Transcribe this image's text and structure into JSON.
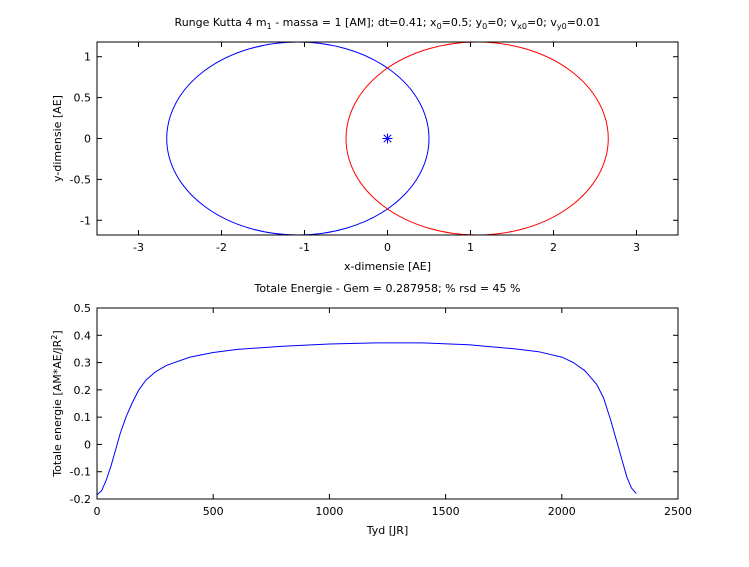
{
  "chart_data": [
    {
      "type": "line",
      "title": {
        "parts": [
          {
            "t": "Runge Kutta 4 m"
          },
          {
            "t": "1",
            "sub": true
          },
          {
            "t": " - massa = 1 [AM]; dt=0.41; x"
          },
          {
            "t": "0",
            "sub": true
          },
          {
            "t": "=0.5; y"
          },
          {
            "t": "0",
            "sub": true
          },
          {
            "t": "=0; v"
          },
          {
            "t": "x0",
            "sub": true
          },
          {
            "t": "=0; v"
          },
          {
            "t": "y0",
            "sub": true
          },
          {
            "t": "=0.01"
          }
        ]
      },
      "xlabel": "x-dimensie [AE]",
      "ylabel": "y-dimensie [AE]",
      "xlim": [
        -3.5,
        3.5
      ],
      "ylim": [
        -1.18,
        1.18
      ],
      "xticks": [
        -3,
        -2,
        -1,
        0,
        1,
        2,
        3
      ],
      "xtick_labels": [
        "-3",
        "-2",
        "-1",
        "0",
        "1",
        "2",
        "3"
      ],
      "yticks": [
        1,
        0.5,
        0,
        -0.5,
        -1
      ],
      "ytick_labels": [
        "1",
        "0.5",
        "0",
        "-0.5",
        "-1"
      ],
      "grid": false,
      "series": [
        {
          "color": "#0000ff",
          "kind": "ellipse",
          "center": [
            -1.08,
            0
          ],
          "semi_axes": [
            1.58,
            1.18
          ]
        },
        {
          "color": "#ff0000",
          "kind": "ellipse",
          "center": [
            1.08,
            0
          ],
          "semi_axes": [
            1.58,
            1.18
          ]
        },
        {
          "color": "#0000ff",
          "kind": "marker",
          "marker": "*",
          "x": [
            0
          ],
          "y": [
            0
          ]
        }
      ]
    },
    {
      "type": "line",
      "title": {
        "parts": [
          {
            "t": "Totale Energie - Gem = 0.287958; % rsd = 45 %"
          }
        ]
      },
      "xlabel": "Tyd [JR]",
      "ylabel": {
        "parts": [
          {
            "t": "Totale energie [AM*AE/JR"
          },
          {
            "t": "2",
            "sup": true
          },
          {
            "t": "]"
          }
        ]
      },
      "xlim": [
        0,
        2500
      ],
      "ylim": [
        -0.2,
        0.5
      ],
      "xticks": [
        0,
        500,
        1000,
        1500,
        2000,
        2500
      ],
      "xtick_labels": [
        "0",
        "500",
        "1000",
        "1500",
        "2000",
        "2500"
      ],
      "yticks": [
        0.5,
        0.4,
        0.3,
        0.2,
        0.1,
        0,
        -0.1,
        -0.2
      ],
      "ytick_labels": [
        "0.5",
        "0.4",
        "0.3",
        "0.2",
        "0.1",
        "0",
        "-0.1",
        "-0.2"
      ],
      "grid": false,
      "series": [
        {
          "color": "#0000ff",
          "x": [
            0,
            20,
            40,
            60,
            80,
            100,
            125,
            150,
            180,
            210,
            250,
            300,
            400,
            500,
            600,
            800,
            1000,
            1200,
            1400,
            1600,
            1800,
            1900,
            2000,
            2050,
            2100,
            2150,
            2180,
            2210,
            2240,
            2260,
            2280,
            2300,
            2320
          ],
          "y": [
            -0.185,
            -0.17,
            -0.13,
            -0.08,
            -0.02,
            0.04,
            0.1,
            0.15,
            0.2,
            0.235,
            0.265,
            0.29,
            0.32,
            0.337,
            0.348,
            0.36,
            0.368,
            0.372,
            0.372,
            0.365,
            0.35,
            0.34,
            0.32,
            0.3,
            0.27,
            0.22,
            0.17,
            0.09,
            0.0,
            -0.06,
            -0.12,
            -0.16,
            -0.18
          ]
        }
      ]
    }
  ]
}
